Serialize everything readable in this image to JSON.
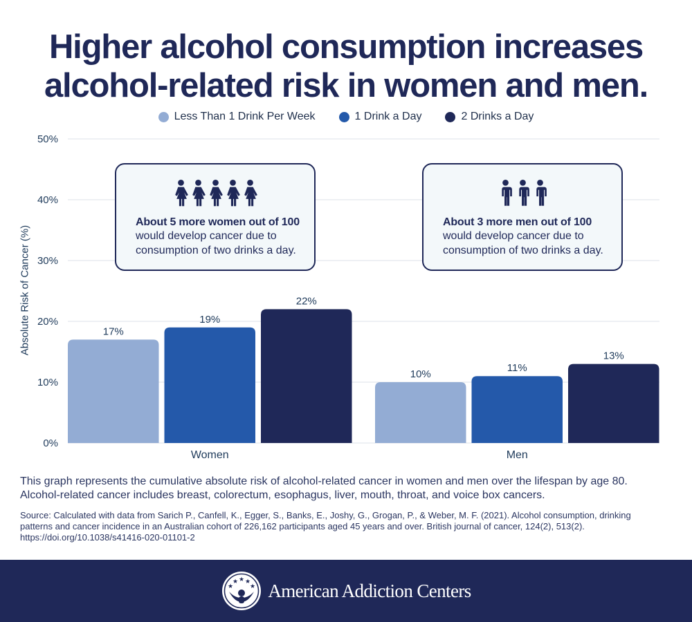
{
  "title": {
    "line1": "Higher alcohol consumption increases",
    "line2": "alcohol-related risk in women and men."
  },
  "legend": [
    {
      "label": "Less Than 1 Drink Per Week",
      "color": "#93acd4"
    },
    {
      "label": "1 Drink a Day",
      "color": "#2459aa"
    },
    {
      "label": "2 Drinks a Day",
      "color": "#1f2858"
    }
  ],
  "callouts": {
    "women": {
      "icon": "woman-figure-icon",
      "icon_count": 5,
      "headline": "About 5 more women out of 100",
      "body_line1": "would develop cancer due to",
      "body_line2": "consumption of two drinks a day."
    },
    "men": {
      "icon": "man-figure-icon",
      "icon_count": 3,
      "headline": "About 3 more men out of 100",
      "body_line1": "would develop cancer due to",
      "body_line2": "consumption of two drinks a day."
    }
  },
  "notes": {
    "line1": "This graph represents the cumulative absolute risk of alcohol-related cancer in women and men over the lifespan by age 80.",
    "line2": "Alcohol-related cancer includes breast, colorectum, esophagus, liver, mouth, throat, and voice box cancers."
  },
  "source": {
    "line1": "Source: Calculated with data from Sarich P., Canfell, K., Egger, S., Banks, E., Joshy, G., Grogan, P., & Weber, M. F. (2021). Alcohol consumption, drinking",
    "line2": "patterns and cancer incidence in an Australian cohort of 226,162 participants aged 45 years and over. British journal of cancer, 124(2), 513(2).",
    "line3": "https://doi.org/10.1038/s41416-020-01101-2"
  },
  "footer": {
    "brand": "American Addiction Centers",
    "logo_icon": "aac-logo-icon"
  },
  "colors": {
    "title": "#1f2858",
    "grid": "#e3e8ee",
    "tick_text": "#1e3a5a",
    "footer_bg": "#1f2858",
    "callout_bg": "#f3f8fa"
  },
  "chart_data": {
    "type": "bar",
    "title": "Higher alcohol consumption increases alcohol-related risk in women and men.",
    "xlabel": "",
    "ylabel": "Absolute Risk of Cancer (%)",
    "categories": [
      "Women",
      "Men"
    ],
    "series": [
      {
        "name": "Less Than 1 Drink Per Week",
        "color": "#93acd4",
        "values": [
          17,
          10
        ]
      },
      {
        "name": "1 Drink a Day",
        "color": "#2459aa",
        "values": [
          19,
          11
        ]
      },
      {
        "name": "2 Drinks a Day",
        "color": "#1f2858",
        "values": [
          22,
          13
        ]
      }
    ],
    "value_labels": [
      [
        "17%",
        "10%"
      ],
      [
        "19%",
        "11%"
      ],
      [
        "22%",
        "13%"
      ]
    ],
    "ylim": [
      0,
      50
    ],
    "yticks": [
      0,
      10,
      20,
      30,
      40,
      50
    ],
    "ytick_labels": [
      "0%",
      "10%",
      "20%",
      "30%",
      "40%",
      "50%"
    ],
    "grid": true,
    "legend_position": "top-center"
  }
}
